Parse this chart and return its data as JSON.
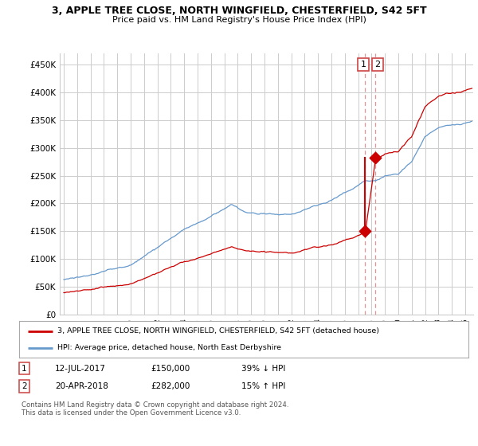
{
  "title": "3, APPLE TREE CLOSE, NORTH WINGFIELD, CHESTERFIELD, S42 5FT",
  "subtitle": "Price paid vs. HM Land Registry's House Price Index (HPI)",
  "ylabel_ticks": [
    "£0",
    "£50K",
    "£100K",
    "£150K",
    "£200K",
    "£250K",
    "£300K",
    "£350K",
    "£400K",
    "£450K"
  ],
  "ytick_values": [
    0,
    50000,
    100000,
    150000,
    200000,
    250000,
    300000,
    350000,
    400000,
    450000
  ],
  "ylim": [
    0,
    470000
  ],
  "x_start_year": 1995,
  "x_end_year": 2025,
  "transaction1_date": 2017.53,
  "transaction1_price": 150000,
  "transaction2_date": 2018.3,
  "transaction2_price": 282000,
  "legend_label_red": "3, APPLE TREE CLOSE, NORTH WINGFIELD, CHESTERFIELD, S42 5FT (detached house)",
  "legend_label_blue": "HPI: Average price, detached house, North East Derbyshire",
  "footer": "Contains HM Land Registry data © Crown copyright and database right 2024.\nThis data is licensed under the Open Government Licence v3.0.",
  "red_color": "#cc0000",
  "blue_color": "#6699cc",
  "dashed_color": "#dd8888",
  "background_color": "#ffffff",
  "grid_color": "#cccccc",
  "seed": 1234
}
